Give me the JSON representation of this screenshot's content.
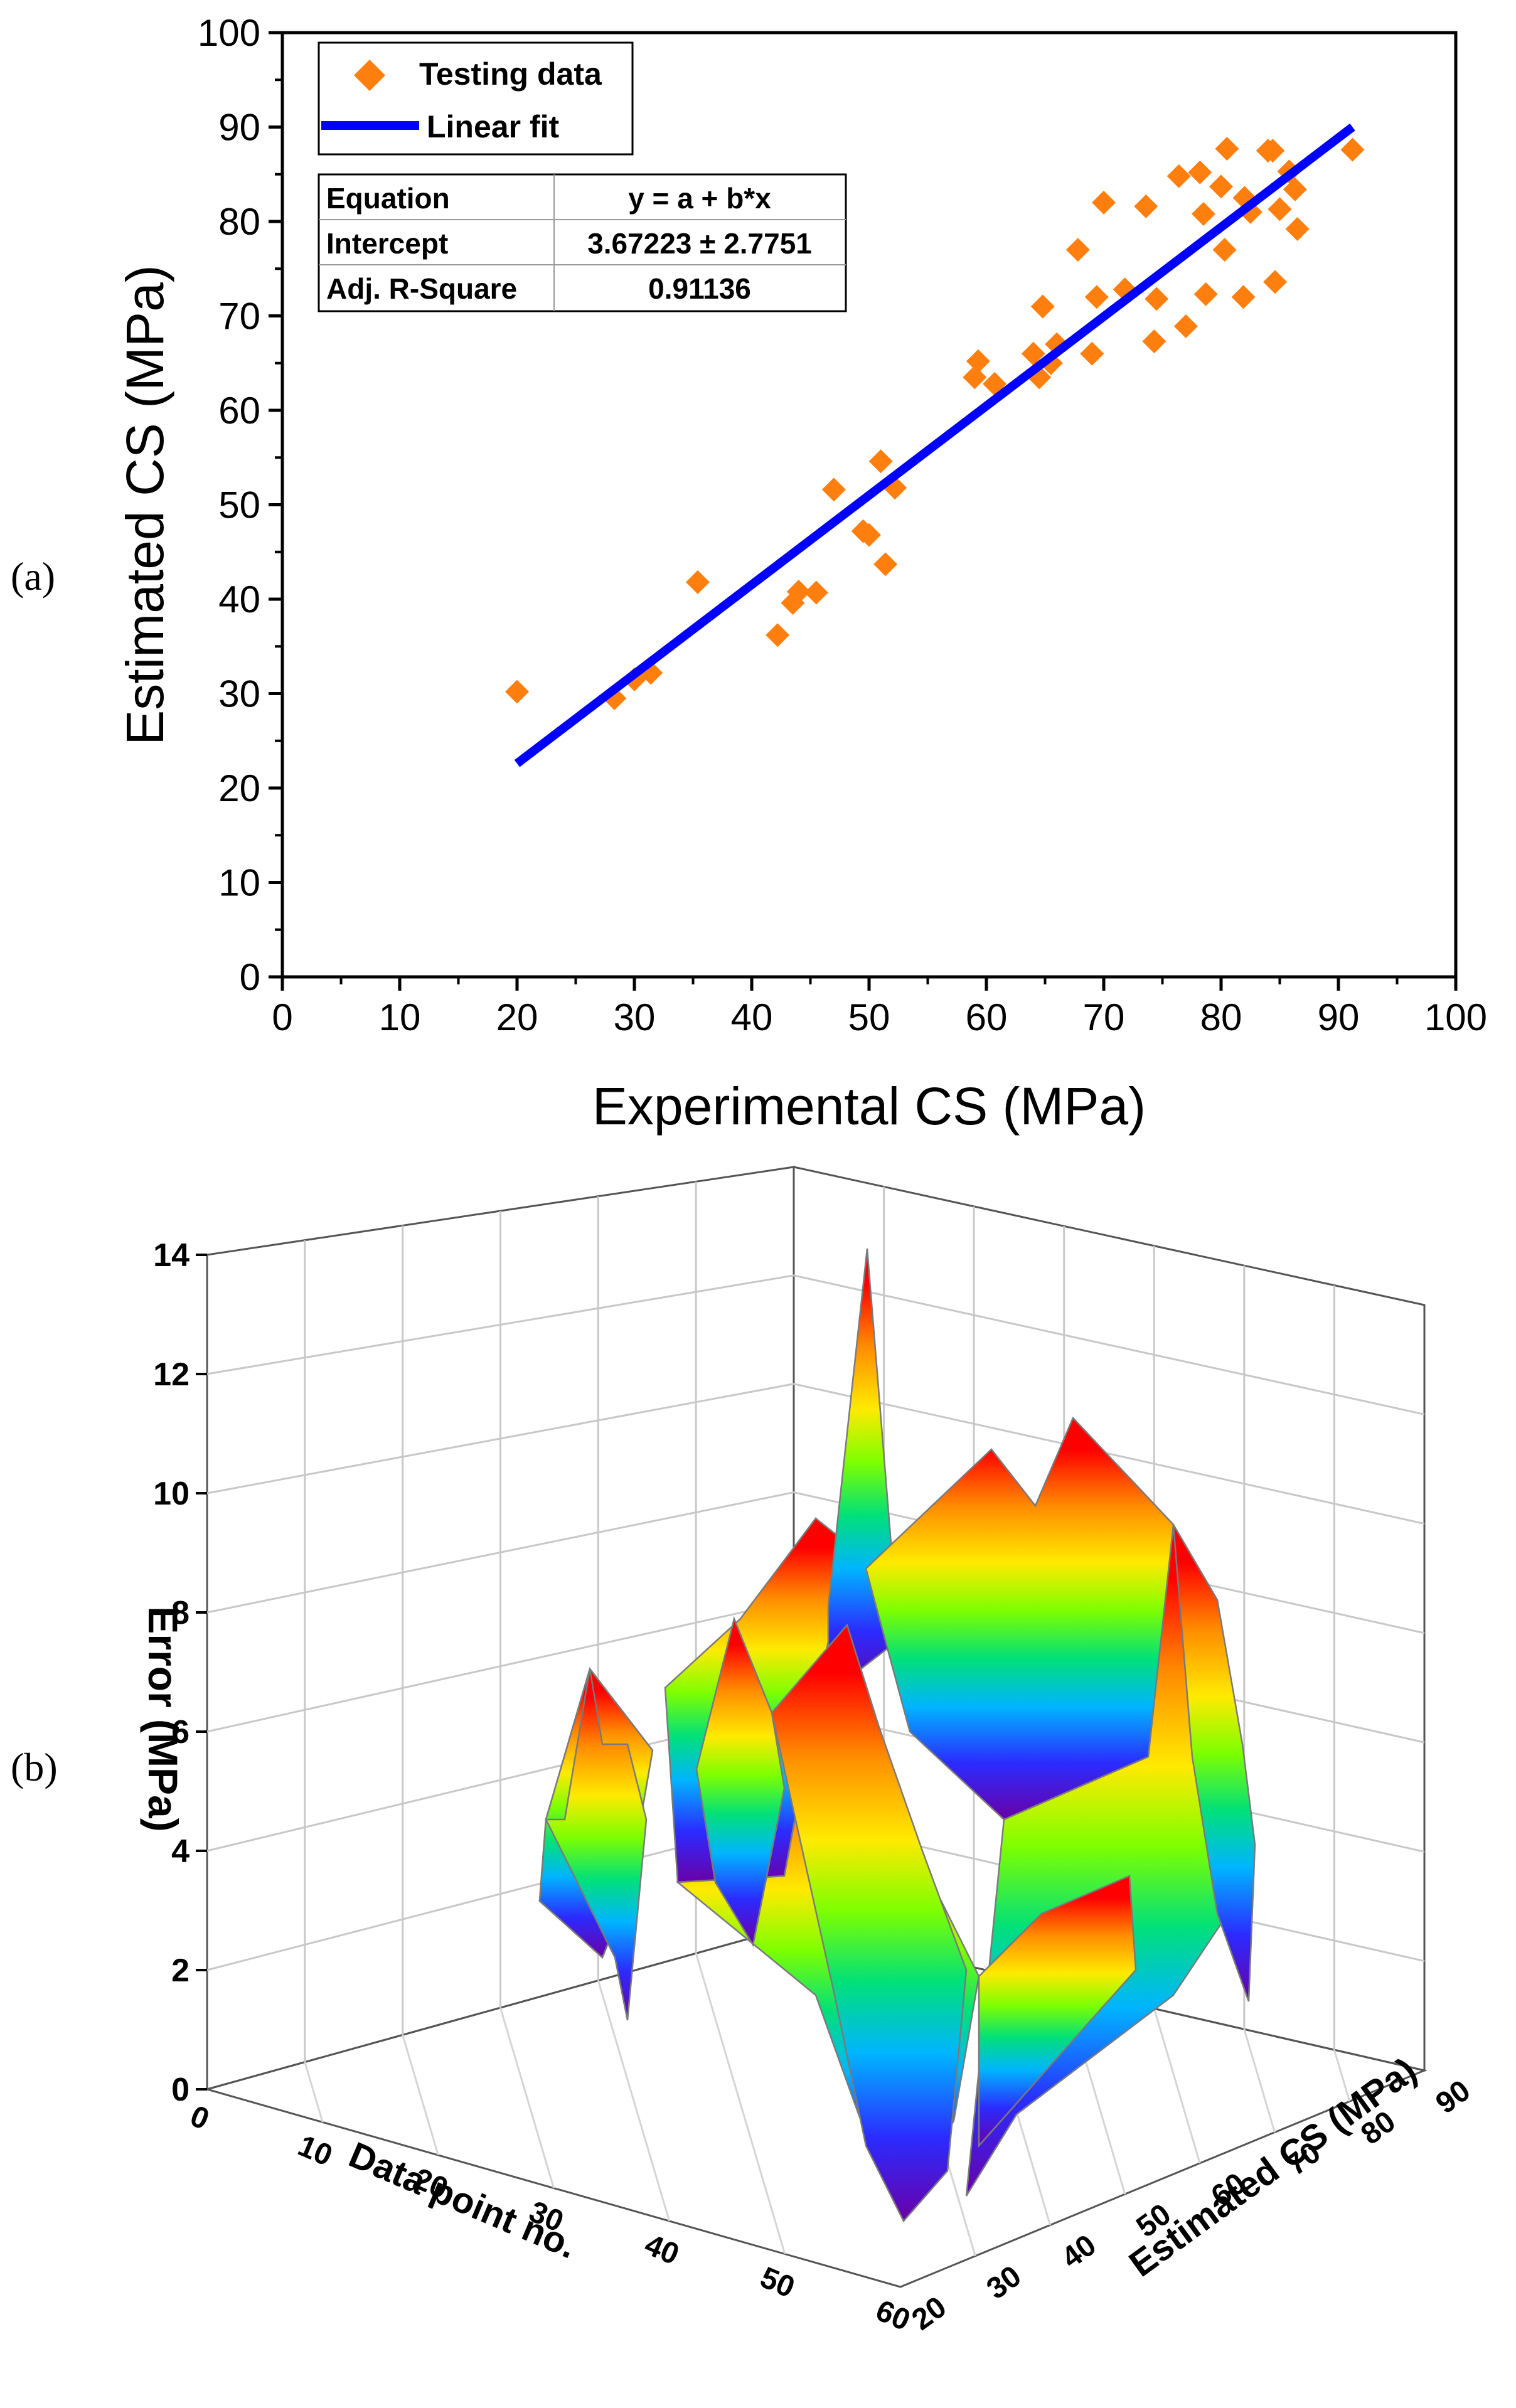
{
  "panel_labels": {
    "a": "(a)",
    "b": "(b)"
  },
  "chart_data": [
    {
      "type": "scatter",
      "title": "",
      "xlabel": "Experimental CS (MPa)",
      "ylabel": "Estimated CS (MPa)",
      "xlim": [
        0,
        100
      ],
      "ylim": [
        0,
        100
      ],
      "xticks": [
        "0",
        "10",
        "20",
        "30",
        "40",
        "50",
        "60",
        "70",
        "80",
        "90",
        "100"
      ],
      "yticks": [
        "0",
        "10",
        "20",
        "30",
        "40",
        "50",
        "60",
        "70",
        "80",
        "90",
        "100"
      ],
      "legend": {
        "position": "top-left",
        "scatter_label": "Testing data",
        "line_label": "Linear fit"
      },
      "colors": {
        "scatter": "#ff7f0e",
        "fit": "#0000ff"
      },
      "series": [
        {
          "name": "Testing data",
          "kind": "scatter",
          "points": [
            [
              20,
              30.2
            ],
            [
              28.3,
              29.5
            ],
            [
              30,
              31.5
            ],
            [
              31.4,
              32.2
            ],
            [
              35.4,
              41.8
            ],
            [
              42.2,
              36.2
            ],
            [
              43.5,
              39.6
            ],
            [
              44,
              40.8
            ],
            [
              45.5,
              40.7
            ],
            [
              47,
              51.6
            ],
            [
              49.5,
              47.2
            ],
            [
              50,
              46.8
            ],
            [
              51,
              54.6
            ],
            [
              51.4,
              43.7
            ],
            [
              52.2,
              51.8
            ],
            [
              59,
              63.5
            ],
            [
              59.3,
              65.2
            ],
            [
              60.7,
              62.8
            ],
            [
              64,
              66
            ],
            [
              64.5,
              63.5
            ],
            [
              64.8,
              71
            ],
            [
              65.5,
              65
            ],
            [
              66,
              67
            ],
            [
              67.8,
              77
            ],
            [
              69,
              66
            ],
            [
              69.4,
              72
            ],
            [
              70,
              82
            ],
            [
              71.8,
              72.8
            ],
            [
              73.6,
              81.6
            ],
            [
              74.3,
              67.3
            ],
            [
              74.5,
              71.8
            ],
            [
              76.4,
              84.8
            ],
            [
              77,
              68.9
            ],
            [
              78.2,
              85.2
            ],
            [
              78.5,
              80.8
            ],
            [
              78.7,
              72.3
            ],
            [
              80,
              83.7
            ],
            [
              80.3,
              77
            ],
            [
              80.5,
              87.7
            ],
            [
              81.9,
              72
            ],
            [
              82,
              82.5
            ],
            [
              82.5,
              81
            ],
            [
              84,
              87.5
            ],
            [
              84.4,
              87.5
            ],
            [
              84.6,
              73.6
            ],
            [
              85,
              81.3
            ],
            [
              85.8,
              85.3
            ],
            [
              86.3,
              83.4
            ],
            [
              86.5,
              79.2
            ],
            [
              91.2,
              87.6
            ]
          ]
        },
        {
          "name": "Linear fit",
          "kind": "line",
          "x": [
            20,
            91.2
          ],
          "y": [
            22.6,
            90.0
          ]
        }
      ],
      "fit_table": {
        "rows": [
          [
            "Equation",
            "y = a + b*x"
          ],
          [
            "Intercept",
            "3.67223 ± 2.7751"
          ],
          [
            "Adj. R-Square",
            "0.91136"
          ]
        ]
      }
    },
    {
      "type": "surface3d",
      "title": "",
      "xlabel": "Data point no.",
      "ylabel": "Estimated CS (MPa)",
      "zlabel": "Error (MPa)",
      "xlim": [
        0,
        60
      ],
      "ylim": [
        20,
        90
      ],
      "zlim": [
        0,
        14
      ],
      "xticks": [
        "0",
        "10",
        "20",
        "30",
        "40",
        "50",
        "60"
      ],
      "yticks": [
        "20",
        "30",
        "40",
        "50",
        "60",
        "70",
        "80",
        "90"
      ],
      "zticks": [
        "0",
        "2",
        "4",
        "6",
        "8",
        "10",
        "12",
        "14"
      ],
      "colormap": [
        "#6a00a8",
        "#2b2bff",
        "#00b4ff",
        "#00e07a",
        "#7dff00",
        "#ffea00",
        "#ff8c00",
        "#ff0000"
      ],
      "peaks": [
        {
          "data_point": 34,
          "estimated_cs": 60,
          "error": 13.8
        },
        {
          "data_point": 44,
          "estimated_cs": 66,
          "error": 11.3
        },
        {
          "data_point": 40,
          "estimated_cs": 62,
          "error": 10.8
        },
        {
          "data_point": 22,
          "estimated_cs": 44,
          "error": 7.5
        },
        {
          "data_point": 15,
          "estimated_cs": 36,
          "error": 7.0
        }
      ]
    }
  ]
}
